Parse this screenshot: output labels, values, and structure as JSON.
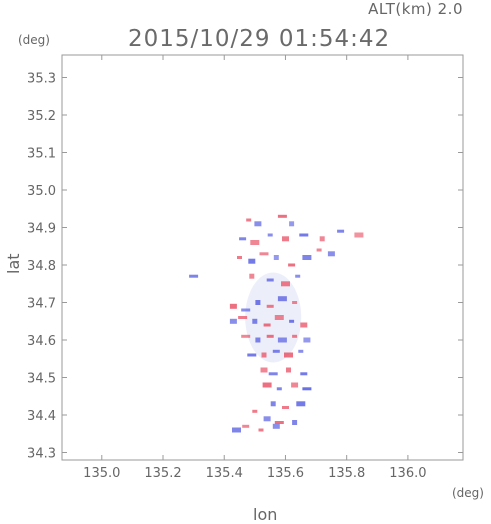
{
  "header": {
    "alt_label": "ALT(km) 2.0",
    "time_label": "2015/10/29 01:54:42",
    "y_unit": "(deg)",
    "x_unit": "(deg)"
  },
  "chart_data": {
    "type": "heatmap",
    "title": "2015/10/29 01:54:42",
    "subtitle": "ALT(km) 2.0",
    "xlabel": "lon",
    "ylabel": "lat",
    "xlim": [
      134.87,
      136.18
    ],
    "ylim": [
      34.28,
      35.36
    ],
    "xticks": [
      "135.0",
      "135.2",
      "135.4",
      "135.6",
      "135.8",
      "136.0"
    ],
    "xtick_values": [
      135.0,
      135.2,
      135.4,
      135.6,
      135.8,
      136.0
    ],
    "yticks": [
      "34.3",
      "34.4",
      "34.5",
      "34.6",
      "34.7",
      "34.8",
      "34.9",
      "35.0",
      "35.1",
      "35.2",
      "35.3"
    ],
    "ytick_values": [
      34.3,
      34.4,
      34.5,
      34.6,
      34.7,
      34.8,
      34.9,
      35.0,
      35.1,
      35.2,
      35.3
    ],
    "grid": false,
    "colors": {
      "positive": "#e8455a",
      "negative": "#4a52e0",
      "axis": "#999999"
    },
    "cells": [
      [
        135.48,
        34.92,
        0.6
      ],
      [
        135.51,
        34.91,
        -0.5
      ],
      [
        135.59,
        34.93,
        0.7
      ],
      [
        135.62,
        34.91,
        -0.4
      ],
      [
        135.46,
        34.87,
        -0.6
      ],
      [
        135.5,
        34.86,
        0.5
      ],
      [
        135.55,
        34.88,
        -0.5
      ],
      [
        135.6,
        34.87,
        0.6
      ],
      [
        135.66,
        34.88,
        -0.7
      ],
      [
        135.72,
        34.87,
        0.5
      ],
      [
        135.78,
        34.89,
        -0.6
      ],
      [
        135.84,
        34.88,
        0.4
      ],
      [
        135.45,
        34.82,
        0.6
      ],
      [
        135.49,
        34.81,
        -0.7
      ],
      [
        135.53,
        34.83,
        0.5
      ],
      [
        135.57,
        34.82,
        -0.4
      ],
      [
        135.62,
        34.8,
        0.7
      ],
      [
        135.67,
        34.82,
        -0.6
      ],
      [
        135.71,
        34.84,
        0.5
      ],
      [
        135.75,
        34.83,
        -0.5
      ],
      [
        135.3,
        34.77,
        -0.6
      ],
      [
        135.49,
        34.77,
        0.5
      ],
      [
        135.55,
        34.76,
        -0.6
      ],
      [
        135.6,
        34.75,
        0.6
      ],
      [
        135.64,
        34.77,
        -0.5
      ],
      [
        135.43,
        34.69,
        0.7
      ],
      [
        135.47,
        34.68,
        -0.5
      ],
      [
        135.51,
        34.7,
        -0.7
      ],
      [
        135.55,
        34.69,
        0.6
      ],
      [
        135.59,
        34.71,
        -0.6
      ],
      [
        135.63,
        34.7,
        0.5
      ],
      [
        135.43,
        34.65,
        -0.5
      ],
      [
        135.46,
        34.66,
        0.6
      ],
      [
        135.5,
        34.65,
        -0.6
      ],
      [
        135.54,
        34.64,
        0.7
      ],
      [
        135.58,
        34.66,
        0.5
      ],
      [
        135.62,
        34.65,
        -0.7
      ],
      [
        135.66,
        34.64,
        0.6
      ],
      [
        135.47,
        34.61,
        0.5
      ],
      [
        135.51,
        34.6,
        -0.6
      ],
      [
        135.55,
        34.61,
        0.7
      ],
      [
        135.59,
        34.6,
        -0.5
      ],
      [
        135.63,
        34.61,
        0.6
      ],
      [
        135.67,
        34.6,
        -0.4
      ],
      [
        135.49,
        34.56,
        -0.7
      ],
      [
        135.53,
        34.56,
        0.6
      ],
      [
        135.57,
        34.57,
        -0.6
      ],
      [
        135.61,
        34.56,
        0.7
      ],
      [
        135.65,
        34.57,
        -0.5
      ],
      [
        135.53,
        34.52,
        0.5
      ],
      [
        135.56,
        34.51,
        -0.6
      ],
      [
        135.61,
        34.52,
        0.6
      ],
      [
        135.66,
        34.51,
        -0.7
      ],
      [
        135.54,
        34.48,
        0.7
      ],
      [
        135.58,
        34.47,
        -0.6
      ],
      [
        135.63,
        34.48,
        0.5
      ],
      [
        135.67,
        34.47,
        -0.8
      ],
      [
        135.56,
        34.43,
        -0.6
      ],
      [
        135.6,
        34.42,
        0.6
      ],
      [
        135.65,
        34.43,
        -0.7
      ],
      [
        135.5,
        34.41,
        0.6
      ],
      [
        135.54,
        34.39,
        -0.5
      ],
      [
        135.58,
        34.38,
        0.7
      ],
      [
        135.63,
        34.38,
        -0.6
      ],
      [
        135.47,
        34.37,
        0.5
      ],
      [
        135.44,
        34.36,
        -0.6
      ],
      [
        135.52,
        34.36,
        0.6
      ],
      [
        135.57,
        34.37,
        -0.5
      ]
    ]
  }
}
